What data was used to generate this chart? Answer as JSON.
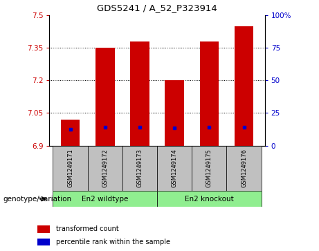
{
  "title": "GDS5241 / A_52_P323914",
  "samples": [
    "GSM1249171",
    "GSM1249172",
    "GSM1249173",
    "GSM1249174",
    "GSM1249175",
    "GSM1249176"
  ],
  "red_values": [
    7.02,
    7.35,
    7.38,
    7.2,
    7.38,
    7.45
  ],
  "blue_values": [
    6.975,
    6.985,
    6.985,
    6.98,
    6.985,
    6.985
  ],
  "ymin": 6.9,
  "ymax": 7.5,
  "y_ticks_left": [
    6.9,
    7.05,
    7.2,
    7.35,
    7.5
  ],
  "y_ticks_right": [
    0,
    25,
    50,
    75,
    100
  ],
  "group_labels": [
    "En2 wildtype",
    "En2 knockout"
  ],
  "group_color": "#90EE90",
  "bar_color": "#CC0000",
  "blue_color": "#0000CC",
  "bg_color": "#C0C0C0",
  "plot_bg": "#FFFFFF",
  "bar_width": 0.55,
  "genotype_label": "genotype/variation",
  "legend_items": [
    {
      "color": "#CC0000",
      "label": "transformed count"
    },
    {
      "color": "#0000CC",
      "label": "percentile rank within the sample"
    }
  ]
}
